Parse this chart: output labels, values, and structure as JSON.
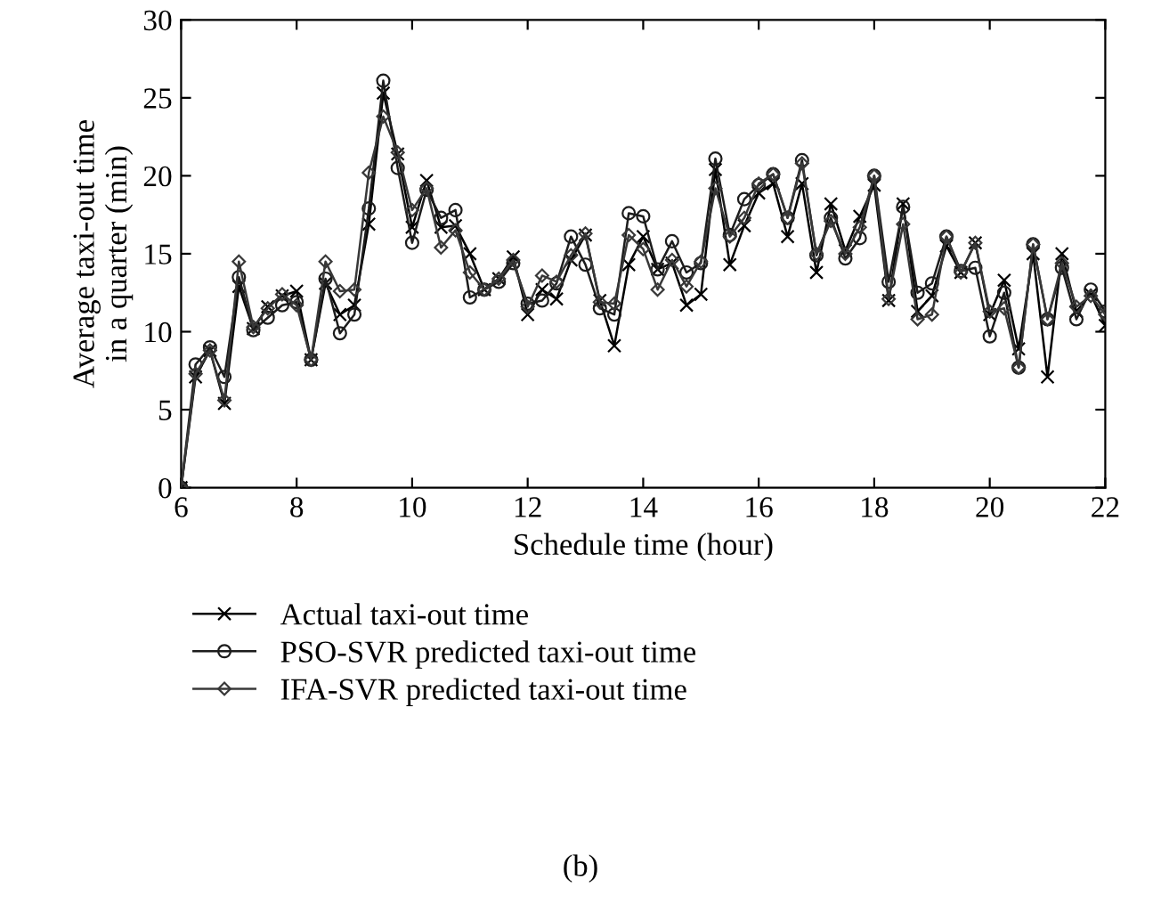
{
  "chart_data": {
    "type": "line",
    "xlabel": "Schedule time (hour)",
    "ylabel": "Average taxi-out time\nin a quarter (min)",
    "annotations": [
      "(b)"
    ],
    "x": [
      6,
      6.25,
      6.5,
      6.75,
      7,
      7.25,
      7.5,
      7.75,
      8,
      8.25,
      8.5,
      8.75,
      9,
      9.25,
      9.5,
      9.75,
      10,
      10.25,
      10.5,
      10.75,
      11,
      11.25,
      11.5,
      11.75,
      12,
      12.25,
      12.5,
      12.75,
      13,
      13.25,
      13.5,
      13.75,
      14,
      14.25,
      14.5,
      14.75,
      15,
      15.25,
      15.5,
      15.75,
      16,
      16.25,
      16.5,
      16.75,
      17,
      17.25,
      17.5,
      17.75,
      18,
      18.25,
      18.5,
      18.75,
      19,
      19.25,
      19.5,
      19.75,
      20,
      20.25,
      20.5,
      20.75,
      21,
      21.25,
      21.5,
      21.75,
      22
    ],
    "series": [
      {
        "name": "Actual taxi-out time",
        "color": "#000000",
        "marker": "cross",
        "values": [
          0,
          7.1,
          8.8,
          5.4,
          12.9,
          10.2,
          11.6,
          12.3,
          12.6,
          8.2,
          13.1,
          11.1,
          11.7,
          16.9,
          25.3,
          21.4,
          16.7,
          19.7,
          16.7,
          16.8,
          15.0,
          12.7,
          13.4,
          14.8,
          11.1,
          12.7,
          12.1,
          14.6,
          16.2,
          12.0,
          9.1,
          14.3,
          16.1,
          14.0,
          14.4,
          11.7,
          12.4,
          20.4,
          14.3,
          16.8,
          18.9,
          19.5,
          16.1,
          19.5,
          13.8,
          18.2,
          15.2,
          17.4,
          19.4,
          12.0,
          18.2,
          11.3,
          12.3,
          15.5,
          13.8,
          15.7,
          11.1,
          13.3,
          8.9,
          15.0,
          7.1,
          15.0,
          11.3,
          12.4,
          10.4
        ]
      },
      {
        "name": "PSO-SVR predicted taxi-out time",
        "color": "#1c1c1c",
        "marker": "circle",
        "values": [
          0,
          7.9,
          9.0,
          7.1,
          13.5,
          10.1,
          10.9,
          11.7,
          11.9,
          8.2,
          13.4,
          9.9,
          11.1,
          17.9,
          26.1,
          20.5,
          15.7,
          19.1,
          17.3,
          17.8,
          12.2,
          12.7,
          13.2,
          14.4,
          11.8,
          12.0,
          13.1,
          16.1,
          14.3,
          11.5,
          11.1,
          17.6,
          17.4,
          14.0,
          15.8,
          13.8,
          14.4,
          21.1,
          16.2,
          18.5,
          19.4,
          20.1,
          17.3,
          21.0,
          14.9,
          17.3,
          14.7,
          16.0,
          20.0,
          13.2,
          18.0,
          12.5,
          13.1,
          16.1,
          13.9,
          14.1,
          9.7,
          12.5,
          7.7,
          15.6,
          10.8,
          14.1,
          10.8,
          12.7,
          11.3
        ]
      },
      {
        "name": "IFA-SVR predicted taxi-out time",
        "color": "#383838",
        "marker": "diamond",
        "values": [
          0,
          7.3,
          8.8,
          5.6,
          14.5,
          10.3,
          11.5,
          12.4,
          11.7,
          8.2,
          14.5,
          12.6,
          12.7,
          20.2,
          23.8,
          21.5,
          17.8,
          19.2,
          15.4,
          16.5,
          13.8,
          12.7,
          13.4,
          14.6,
          11.6,
          13.6,
          13.2,
          14.9,
          16.3,
          11.9,
          11.8,
          16.2,
          15.3,
          12.7,
          14.6,
          12.9,
          14.5,
          19.2,
          16.1,
          17.3,
          19.5,
          20.1,
          17.3,
          20.8,
          15.0,
          17.1,
          15.0,
          16.7,
          20.0,
          12.1,
          16.9,
          10.8,
          11.1,
          16.1,
          13.8,
          15.7,
          11.3,
          11.5,
          7.7,
          15.6,
          10.8,
          14.4,
          11.6,
          12.3,
          11.1
        ]
      }
    ],
    "xlim": [
      6,
      22
    ],
    "xticks": [
      6,
      8,
      10,
      12,
      14,
      16,
      18,
      20,
      22
    ],
    "ylim": [
      0,
      30
    ],
    "yticks": [
      0,
      5,
      10,
      15,
      20,
      25,
      30
    ],
    "grid": false,
    "legend": "bottom",
    "line_style": "solid"
  }
}
